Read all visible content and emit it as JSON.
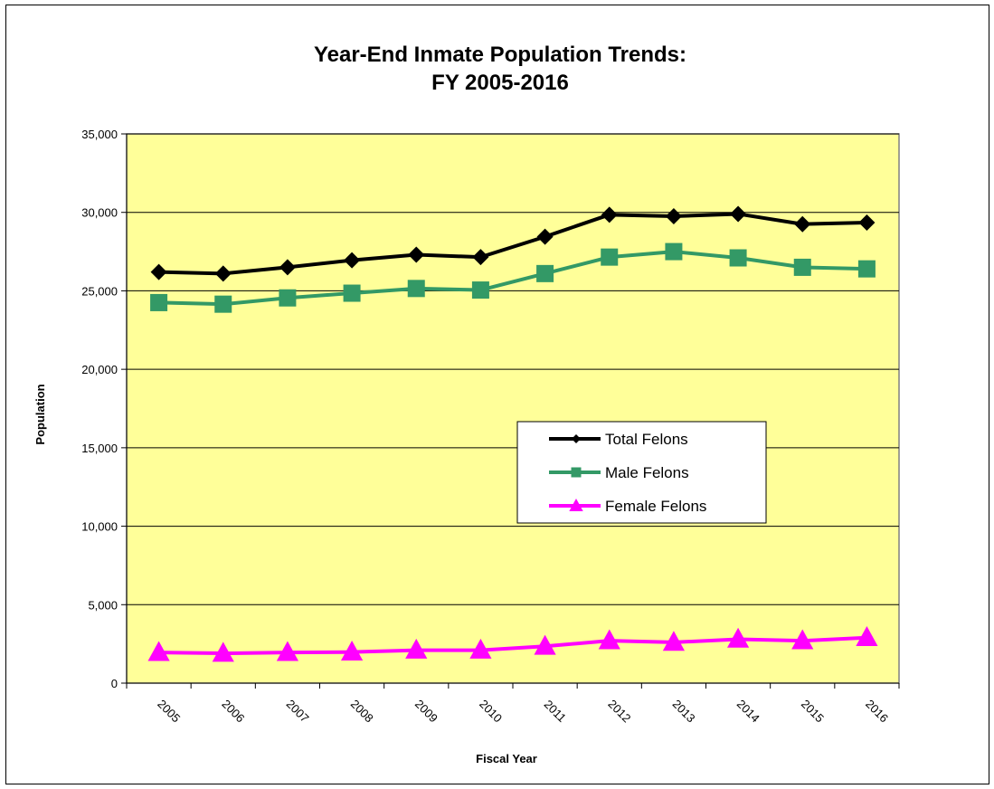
{
  "chart_data": {
    "type": "line",
    "title": "Year-End Inmate Population Trends:",
    "subtitle": "FY 2005-2016",
    "xlabel": "Fiscal Year",
    "ylabel": "Population",
    "x": [
      "2005",
      "2006",
      "2007",
      "2008",
      "2009",
      "2010",
      "2011",
      "2012",
      "2013",
      "2014",
      "2015",
      "2016"
    ],
    "ylim": [
      0,
      35000
    ],
    "yticks": [
      0,
      5000,
      10000,
      15000,
      20000,
      25000,
      30000,
      35000
    ],
    "ytick_labels": [
      "0",
      "5,000",
      "10,000",
      "15,000",
      "20,000",
      "25,000",
      "30,000",
      "35,000"
    ],
    "grid": true,
    "plot_background": "#FFFF99",
    "legend_position": "center-right",
    "series": [
      {
        "name": "Total Felons",
        "color": "#000000",
        "marker": "diamond",
        "values": [
          26200,
          26100,
          26500,
          26950,
          27300,
          27150,
          28450,
          29850,
          29750,
          29900,
          29250,
          29350
        ]
      },
      {
        "name": "Male Felons",
        "color": "#339966",
        "marker": "square",
        "values": [
          24250,
          24150,
          24550,
          24850,
          25150,
          25050,
          26100,
          27150,
          27500,
          27100,
          26500,
          26400
        ]
      },
      {
        "name": "Female Felons",
        "color": "#FF00FF",
        "marker": "triangle",
        "values": [
          1950,
          1900,
          1950,
          1980,
          2100,
          2100,
          2350,
          2700,
          2600,
          2800,
          2700,
          2900
        ]
      }
    ]
  }
}
